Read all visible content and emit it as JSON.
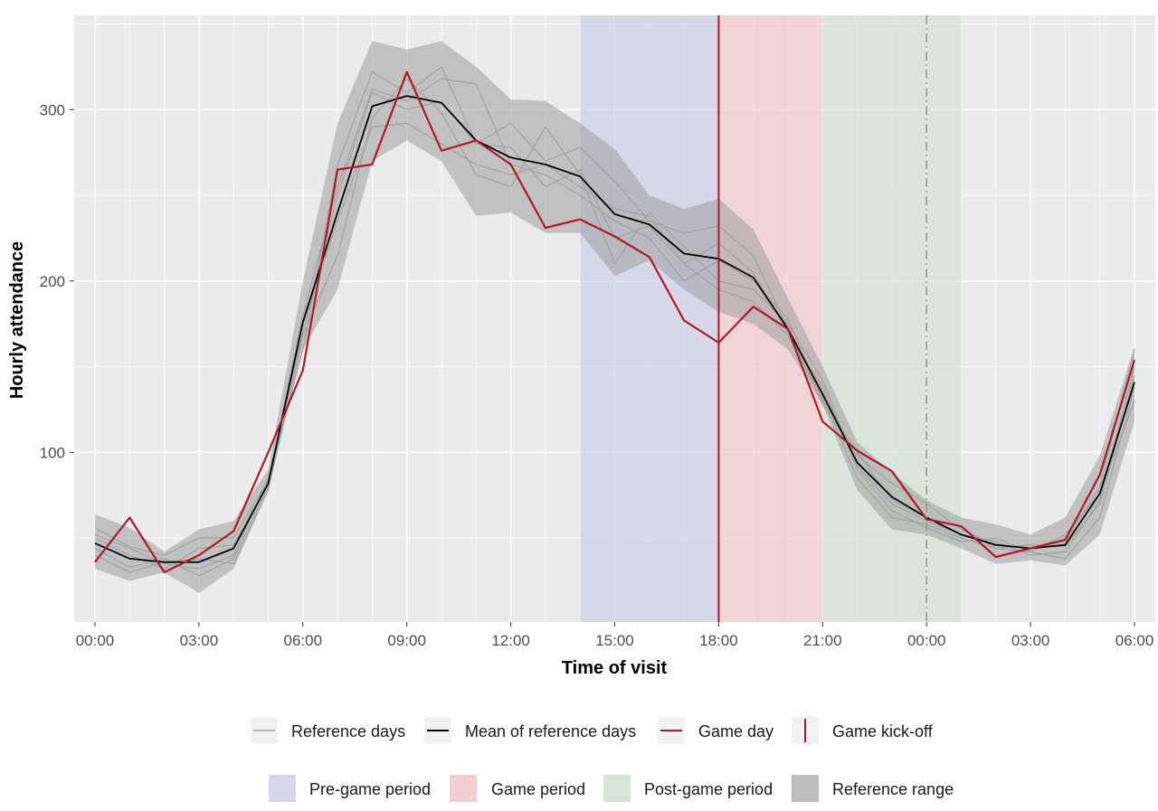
{
  "chart_data": {
    "type": "line",
    "title": "",
    "xlabel": "Time of visit",
    "ylabel": "Hourly attendance",
    "x_tick_labels": [
      "00:00",
      "03:00",
      "06:00",
      "09:00",
      "12:00",
      "15:00",
      "18:00",
      "21:00",
      "00:00",
      "03:00",
      "06:00"
    ],
    "x_tick_hours": [
      0,
      3,
      6,
      9,
      12,
      15,
      18,
      21,
      24,
      27,
      30
    ],
    "xlim_hours": [
      -0.6,
      30.6
    ],
    "y_ticks": [
      100,
      200,
      300
    ],
    "ylim": [
      1,
      355
    ],
    "grid": true,
    "x_hours": [
      0,
      1,
      2,
      3,
      4,
      5,
      6,
      7,
      8,
      9,
      10,
      11,
      12,
      13,
      14,
      15,
      16,
      17,
      18,
      19,
      20,
      21,
      22,
      23,
      24,
      25,
      26,
      27,
      28,
      29,
      30
    ],
    "periods": [
      {
        "name": "Pre-game period",
        "start": 14,
        "end": 18,
        "color": "#c9c9ea"
      },
      {
        "name": "Game period",
        "start": 18,
        "end": 21,
        "color": "#f4c4c8"
      },
      {
        "name": "Post-game period",
        "start": 21,
        "end": 25,
        "color": "#cfe3cf"
      }
    ],
    "kickoff_hour": 18,
    "midnight_marker_hour": 24,
    "reference_range": {
      "name": "Reference range",
      "lower": [
        32,
        25,
        30,
        18,
        32,
        78,
        160,
        195,
        270,
        282,
        270,
        238,
        240,
        228,
        228,
        203,
        212,
        195,
        182,
        175,
        160,
        128,
        78,
        55,
        52,
        44,
        35,
        37,
        34,
        52,
        118
      ],
      "upper": [
        64,
        56,
        42,
        55,
        60,
        90,
        200,
        292,
        340,
        335,
        340,
        325,
        306,
        305,
        292,
        277,
        250,
        242,
        248,
        230,
        190,
        150,
        106,
        88,
        72,
        62,
        58,
        52,
        62,
        98,
        162
      ]
    },
    "series": [
      {
        "name": "Reference days",
        "color": "#a0a0a0",
        "values": [
          52,
          44,
          35,
          32,
          40,
          85,
          170,
          250,
          310,
          300,
          305,
          280,
          278,
          255,
          265,
          225,
          232,
          210,
          222,
          205,
          170,
          138,
          92,
          70,
          60,
          52,
          48,
          40,
          42,
          72,
          150
        ]
      },
      {
        "name": "Reference days",
        "color": "#a0a0a0",
        "values": [
          44,
          33,
          38,
          28,
          38,
          80,
          175,
          235,
          290,
          292,
          280,
          268,
          262,
          268,
          255,
          242,
          238,
          210,
          195,
          188,
          168,
          132,
          85,
          62,
          58,
          50,
          44,
          42,
          38,
          62,
          138
        ]
      },
      {
        "name": "Reference days",
        "color": "#a0a0a0",
        "values": [
          56,
          45,
          40,
          50,
          50,
          84,
          160,
          268,
          322,
          310,
          325,
          280,
          292,
          270,
          278,
          258,
          235,
          228,
          232,
          215,
          172,
          128,
          98,
          82,
          70,
          55,
          46,
          44,
          48,
          80,
          160
        ]
      },
      {
        "name": "Reference days",
        "color": "#a0a0a0",
        "values": [
          40,
          30,
          36,
          38,
          35,
          78,
          168,
          215,
          295,
          318,
          298,
          262,
          255,
          290,
          262,
          210,
          240,
          220,
          200,
          195,
          175,
          142,
          90,
          66,
          56,
          48,
          50,
          42,
          52,
          76,
          130
        ]
      },
      {
        "name": "Reference days",
        "color": "#a0a0a0",
        "values": [
          50,
          40,
          32,
          44,
          46,
          82,
          180,
          255,
          312,
          305,
          318,
          315,
          268,
          262,
          250,
          235,
          225,
          200,
          212,
          200,
          178,
          130,
          100,
          72,
          62,
          56,
          44,
          46,
          45,
          70,
          145
        ]
      },
      {
        "name": "Mean of reference days",
        "color": "#000000",
        "values": [
          47,
          38,
          36,
          36,
          44,
          82,
          176,
          240,
          302,
          308,
          304,
          282,
          272,
          268,
          261,
          239,
          233,
          216,
          213,
          202,
          172,
          134,
          94,
          74,
          62,
          52,
          46,
          44,
          46,
          76,
          141
        ]
      },
      {
        "name": "Game day",
        "color": "#b2182b",
        "values": [
          36,
          62,
          30,
          40,
          54,
          100,
          148,
          265,
          268,
          322,
          276,
          282,
          268,
          231,
          236,
          226,
          214,
          177,
          164,
          185,
          172,
          118,
          101,
          89,
          61,
          57,
          39,
          44,
          49,
          87,
          154
        ]
      }
    ]
  },
  "legend": {
    "row1": [
      {
        "label": "Reference days",
        "icon": "thin-grey-line"
      },
      {
        "label": "Mean of reference days",
        "icon": "black-line"
      },
      {
        "label": "Game day",
        "icon": "red-line"
      },
      {
        "label": "Game kick-off",
        "icon": "red-vertical-line"
      }
    ],
    "row2": [
      {
        "label": "Pre-game period",
        "color": "#d6d6ec"
      },
      {
        "label": "Game period",
        "color": "#f3cfd1"
      },
      {
        "label": "Post-game period",
        "color": "#d6e6d6"
      },
      {
        "label": "Reference range",
        "color": "#bdbdbd"
      }
    ]
  },
  "colors": {
    "panel_bg": "#ebebeb",
    "grid": "#ffffff",
    "kickoff": "#b2182b",
    "midnight_marker": "#8aa08a"
  }
}
